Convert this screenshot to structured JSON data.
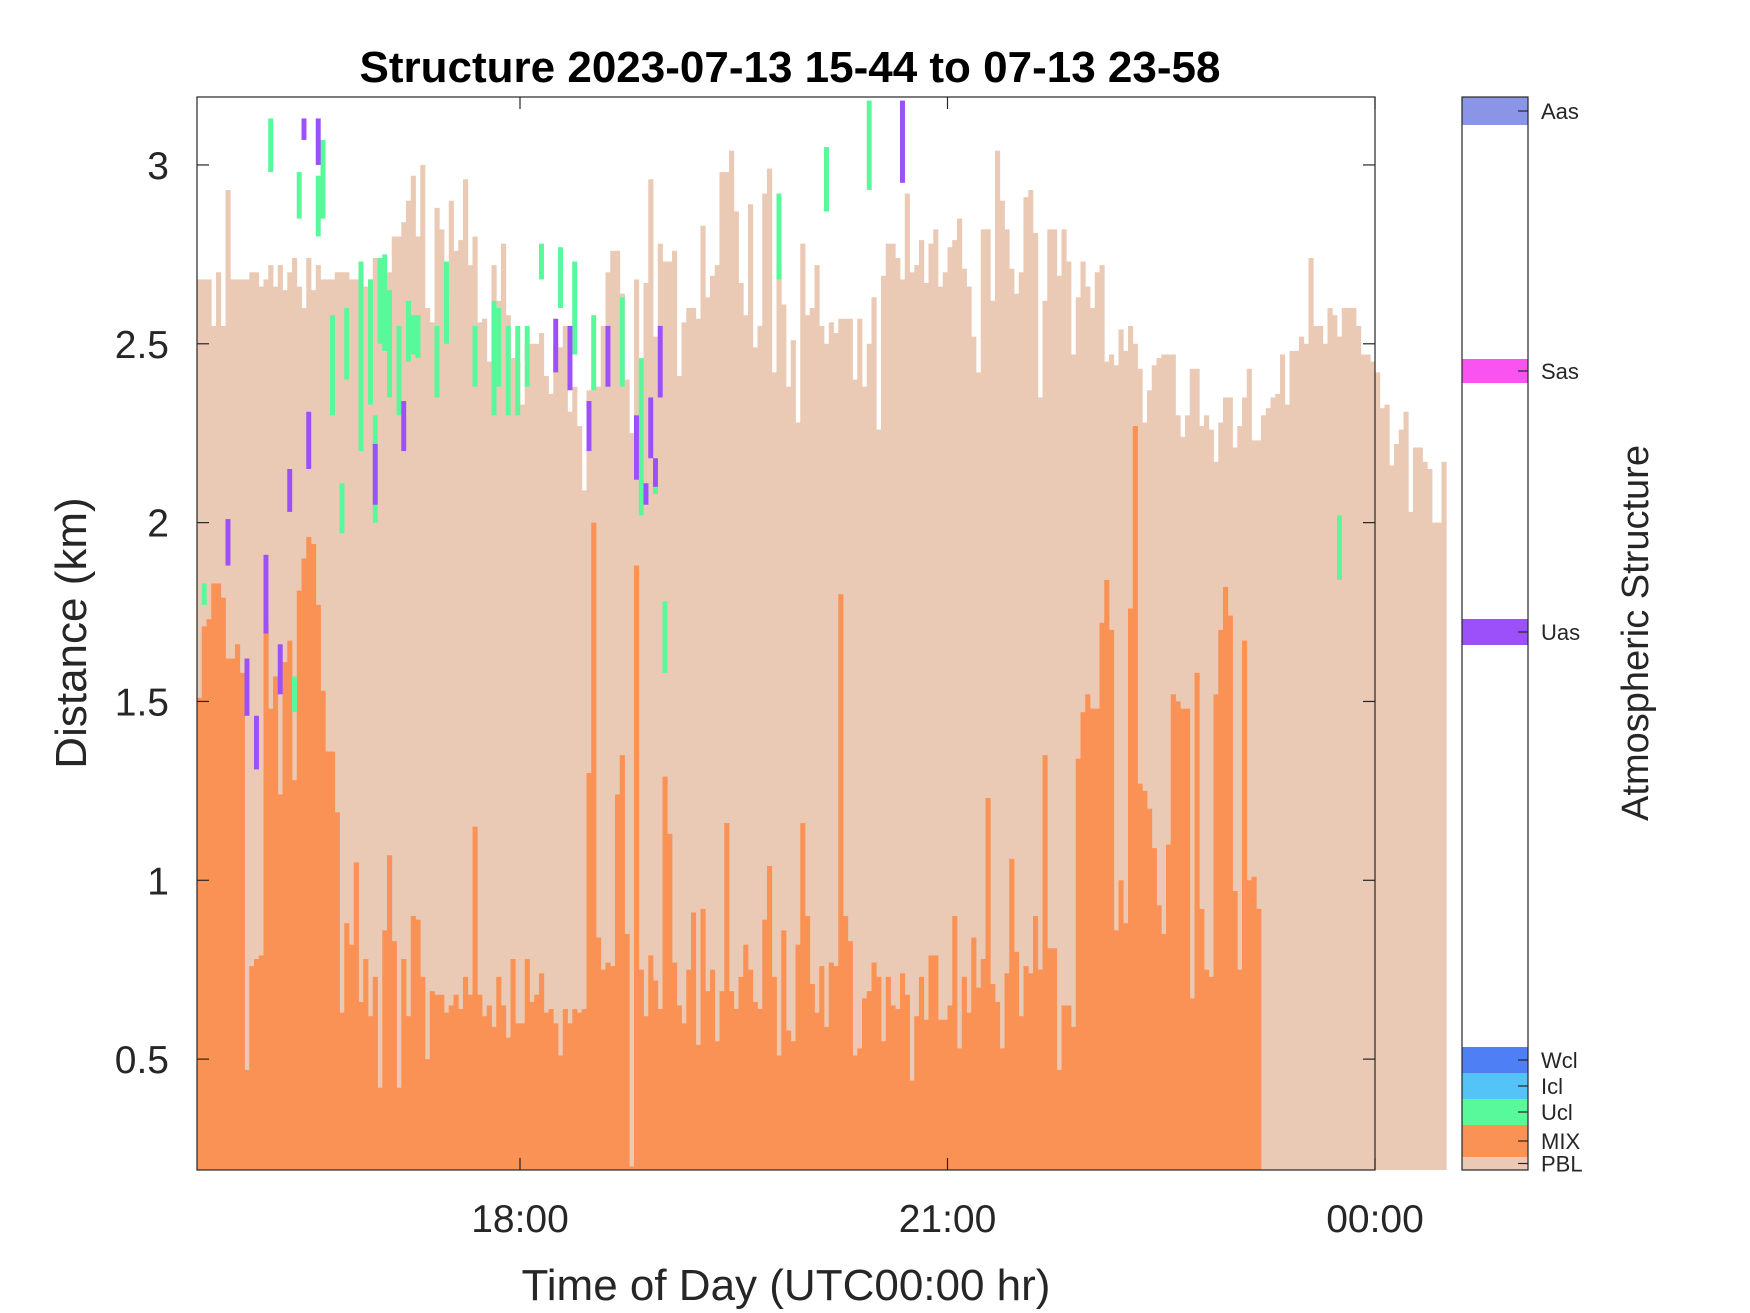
{
  "chart_data": {
    "type": "bar",
    "title": "Structure 2023-07-13 15-44 to 07-13 23-58",
    "xlabel": "Time of Day (UTC00:00 hr)",
    "ylabel": "Distance (km)",
    "xlim": [
      "15:44",
      "00:00"
    ],
    "ylim": [
      0.19,
      3.19
    ],
    "bin_minutes": 2,
    "x_ticks": [
      "18:00",
      "21:00",
      "00:00"
    ],
    "y_ticks": [
      "0.5",
      "1",
      "1.5",
      "2",
      "2.5",
      "3"
    ],
    "grid": false,
    "series": [
      {
        "name": "PBL",
        "color": "#ebcab5",
        "x_start": "15:44",
        "values": [
          2.68,
          2.68,
          2.68,
          2.55,
          2.7,
          2.55,
          2.93,
          2.68,
          2.68,
          2.68,
          2.68,
          2.7,
          2.7,
          2.66,
          2.68,
          2.72,
          2.66,
          2.72,
          2.65,
          2.7,
          2.74,
          2.66,
          2.6,
          2.74,
          2.65,
          2.72,
          2.68,
          2.68,
          2.68,
          2.7,
          2.7,
          2.7,
          2.68,
          2.68,
          2.7,
          2.66,
          2.68,
          2.74,
          2.68,
          2.68,
          2.7,
          2.8,
          2.8,
          2.84,
          2.9,
          2.97,
          2.8,
          3.0,
          2.6,
          2.56,
          2.88,
          2.82,
          2.63,
          2.9,
          2.76,
          2.79,
          2.96,
          2.72,
          2.8,
          2.56,
          2.57,
          2.45,
          2.72,
          2.62,
          2.78,
          2.58,
          2.46,
          2.45,
          2.33,
          2.5,
          2.5,
          2.5,
          2.53,
          2.41,
          2.36,
          2.5,
          2.49,
          2.55,
          2.31,
          2.38,
          2.27,
          2.09,
          2.37,
          2.38,
          2.38,
          2.55,
          2.7,
          2.76,
          2.76,
          2.64,
          2.4,
          2.25,
          2.68,
          2.27,
          2.67,
          2.96,
          2.52,
          2.78,
          2.73,
          2.73,
          2.76,
          2.41,
          2.56,
          2.6,
          2.6,
          2.57,
          2.83,
          2.63,
          2.69,
          2.72,
          2.98,
          2.98,
          3.04,
          2.87,
          2.67,
          2.58,
          2.89,
          2.49,
          2.55,
          2.92,
          2.99,
          2.42,
          2.72,
          2.61,
          2.38,
          2.51,
          2.28,
          2.78,
          2.58,
          2.6,
          2.72,
          2.55,
          2.5,
          2.56,
          2.53,
          2.57,
          2.57,
          2.57,
          2.4,
          2.57,
          2.38,
          2.5,
          2.63,
          2.26,
          2.69,
          2.78,
          2.78,
          2.74,
          2.68,
          2.92,
          2.7,
          2.72,
          2.79,
          2.67,
          2.78,
          2.82,
          2.66,
          2.7,
          2.77,
          2.79,
          2.85,
          2.71,
          2.66,
          2.52,
          2.42,
          2.82,
          2.82,
          2.62,
          3.04,
          2.9,
          2.82,
          2.71,
          2.64,
          2.7,
          2.91,
          2.93,
          2.81,
          2.35,
          2.62,
          2.82,
          2.82,
          2.69,
          2.82,
          2.73,
          2.47,
          2.63,
          2.73,
          2.66,
          2.6,
          2.7,
          2.72,
          2.45,
          2.47,
          2.44,
          2.54,
          2.48,
          2.55,
          2.5,
          2.43,
          2.28,
          2.37,
          2.44,
          2.46,
          2.47,
          2.47,
          2.47,
          2.3,
          2.24,
          2.3,
          2.43,
          2.43,
          2.27,
          2.3,
          2.26,
          2.17,
          2.28,
          2.35,
          2.35,
          2.21,
          2.27,
          2.35,
          2.43,
          2.23,
          2.23,
          2.3,
          2.32,
          2.35,
          2.36,
          2.47,
          2.33,
          2.48,
          2.48,
          2.52,
          2.5,
          2.74,
          2.55,
          2.55,
          2.5,
          2.6,
          2.58,
          2.52,
          2.6,
          2.6,
          2.6,
          2.55,
          2.47,
          2.47,
          2.45,
          2.42,
          2.32,
          2.33,
          2.16,
          2.22,
          2.26,
          2.31,
          2.03,
          2.21,
          2.21,
          2.17,
          2.15,
          2.0,
          2.0,
          2.17
        ]
      },
      {
        "name": "MIX",
        "color": "#f99254",
        "x_start": "15:44",
        "values": [
          1.51,
          1.71,
          1.73,
          1.83,
          1.83,
          1.79,
          1.62,
          1.62,
          1.66,
          1.58,
          0.47,
          0.76,
          0.78,
          0.79,
          1.72,
          1.48,
          1.57,
          1.24,
          1.61,
          1.67,
          1.28,
          1.81,
          1.9,
          1.96,
          1.94,
          1.77,
          1.53,
          1.36,
          1.36,
          1.19,
          0.63,
          0.88,
          0.82,
          1.05,
          0.66,
          0.78,
          0.62,
          0.73,
          0.42,
          0.86,
          1.07,
          0.83,
          0.42,
          0.78,
          0.62,
          0.9,
          0.89,
          0.73,
          0.5,
          0.69,
          0.68,
          0.68,
          0.63,
          0.65,
          0.68,
          0.64,
          0.73,
          0.68,
          1.15,
          0.68,
          0.62,
          0.65,
          0.59,
          0.73,
          0.65,
          0.56,
          0.78,
          0.6,
          0.6,
          0.78,
          0.66,
          0.68,
          0.74,
          0.63,
          0.64,
          0.6,
          0.51,
          0.64,
          0.6,
          0.64,
          0.63,
          0.64,
          1.3,
          2.0,
          0.84,
          0.75,
          0.77,
          0.76,
          1.24,
          1.35,
          0.85,
          0.2,
          1.88,
          0.75,
          0.62,
          0.79,
          0.72,
          0.64,
          1.29,
          1.13,
          0.77,
          0.65,
          0.6,
          0.75,
          0.91,
          0.54,
          0.92,
          0.69,
          0.75,
          0.55,
          0.69,
          1.16,
          0.69,
          0.64,
          0.73,
          0.82,
          0.75,
          0.66,
          0.64,
          0.89,
          1.04,
          0.73,
          0.51,
          0.86,
          0.58,
          0.55,
          0.82,
          1.16,
          0.9,
          0.71,
          0.63,
          0.76,
          0.59,
          0.77,
          0.76,
          1.8,
          0.9,
          0.83,
          0.51,
          0.53,
          0.67,
          0.69,
          0.77,
          0.73,
          0.55,
          0.73,
          0.65,
          0.64,
          0.74,
          0.68,
          0.44,
          0.62,
          0.73,
          0.61,
          0.79,
          0.79,
          0.61,
          0.61,
          0.65,
          0.9,
          0.53,
          0.73,
          0.63,
          0.84,
          0.7,
          0.78,
          1.23,
          0.71,
          0.66,
          0.53,
          0.74,
          1.06,
          0.8,
          0.62,
          0.76,
          0.74,
          0.9,
          0.75,
          1.35,
          0.81,
          0.81,
          0.47,
          0.65,
          0.65,
          0.59,
          1.34,
          1.47,
          1.52,
          1.48,
          1.48,
          1.72,
          1.84,
          1.7,
          0.86,
          1.0,
          0.88,
          1.76,
          2.27,
          1.27,
          1.25,
          1.2,
          1.09,
          0.93,
          0.85,
          1.1,
          1.52,
          1.5,
          1.48,
          1.48,
          0.67,
          1.58,
          0.92,
          0.75,
          0.73,
          1.52,
          1.7,
          1.82,
          1.74,
          0.97,
          0.75,
          1.67,
          1.0,
          1.01,
          0.92
        ]
      },
      {
        "name": "Ucl",
        "color": "#57f99a",
        "points": [
          [
            "15:46",
            1.77,
            1.83
          ],
          [
            "16:14",
            2.98,
            3.13
          ],
          [
            "16:24",
            1.47,
            1.57
          ],
          [
            "16:26",
            2.85,
            2.98
          ],
          [
            "16:34",
            2.8,
            2.97
          ],
          [
            "16:36",
            2.85,
            3.07
          ],
          [
            "16:40",
            2.3,
            2.58
          ],
          [
            "16:44",
            1.97,
            2.11
          ],
          [
            "16:46",
            2.4,
            2.6
          ],
          [
            "16:52",
            2.2,
            2.73
          ],
          [
            "16:56",
            2.33,
            2.68
          ],
          [
            "16:58",
            2.0,
            2.3
          ],
          [
            "17:00",
            2.5,
            2.74
          ],
          [
            "17:02",
            2.48,
            2.75
          ],
          [
            "17:04",
            2.35,
            2.65
          ],
          [
            "17:08",
            2.3,
            2.55
          ],
          [
            "17:12",
            2.45,
            2.62
          ],
          [
            "17:14",
            2.47,
            2.58
          ],
          [
            "17:16",
            2.46,
            2.58
          ],
          [
            "17:24",
            2.35,
            2.55
          ],
          [
            "17:28",
            2.5,
            2.73
          ],
          [
            "17:40",
            2.38,
            2.55
          ],
          [
            "17:48",
            2.3,
            2.62
          ],
          [
            "17:50",
            2.38,
            2.6
          ],
          [
            "17:54",
            2.3,
            2.55
          ],
          [
            "17:58",
            2.3,
            2.55
          ],
          [
            "18:02",
            2.38,
            2.55
          ],
          [
            "18:08",
            2.68,
            2.78
          ],
          [
            "18:16",
            2.6,
            2.77
          ],
          [
            "18:22",
            2.47,
            2.73
          ],
          [
            "18:30",
            2.37,
            2.58
          ],
          [
            "18:42",
            2.38,
            2.63
          ],
          [
            "18:50",
            2.02,
            2.46
          ],
          [
            "18:56",
            2.08,
            2.18
          ],
          [
            "19:00",
            1.58,
            1.78
          ],
          [
            "19:48",
            2.68,
            2.92
          ],
          [
            "20:08",
            2.87,
            3.05
          ],
          [
            "20:26",
            2.93,
            3.18
          ],
          [
            "23:44",
            1.84,
            2.02
          ]
        ]
      },
      {
        "name": "Uas",
        "color": "#9c50f9",
        "points": [
          [
            "15:56",
            1.88,
            2.01
          ],
          [
            "16:04",
            1.46,
            1.62
          ],
          [
            "16:08",
            1.31,
            1.46
          ],
          [
            "16:12",
            1.69,
            1.91
          ],
          [
            "16:18",
            1.52,
            1.66
          ],
          [
            "16:22",
            2.03,
            2.15
          ],
          [
            "16:28",
            3.07,
            3.13
          ],
          [
            "16:30",
            2.15,
            2.31
          ],
          [
            "16:34",
            3.0,
            3.13
          ],
          [
            "16:58",
            2.05,
            2.22
          ],
          [
            "17:10",
            2.2,
            2.34
          ],
          [
            "18:14",
            2.42,
            2.57
          ],
          [
            "18:20",
            2.37,
            2.55
          ],
          [
            "18:28",
            2.2,
            2.34
          ],
          [
            "18:36",
            2.38,
            2.55
          ],
          [
            "18:48",
            2.12,
            2.3
          ],
          [
            "18:52",
            2.05,
            2.11
          ],
          [
            "18:54",
            2.18,
            2.35
          ],
          [
            "18:56",
            2.1,
            2.18
          ],
          [
            "18:58",
            2.35,
            2.55
          ],
          [
            "20:40",
            2.95,
            3.18
          ]
        ]
      }
    ],
    "colorbar": {
      "label": "Atmospheric Structure",
      "entries": [
        {
          "name": "Aas",
          "color": "#8a95e8"
        },
        {
          "name": "Sas",
          "color": "#f953f2"
        },
        {
          "name": "Uas",
          "color": "#9c50f9"
        },
        {
          "name": "Wcl",
          "color": "#4f7ff5"
        },
        {
          "name": "Icl",
          "color": "#53c3f8"
        },
        {
          "name": "Ucl",
          "color": "#57f99a"
        },
        {
          "name": "MIX",
          "color": "#f99254"
        },
        {
          "name": "PBL",
          "color": "#ebcab5"
        }
      ]
    }
  }
}
